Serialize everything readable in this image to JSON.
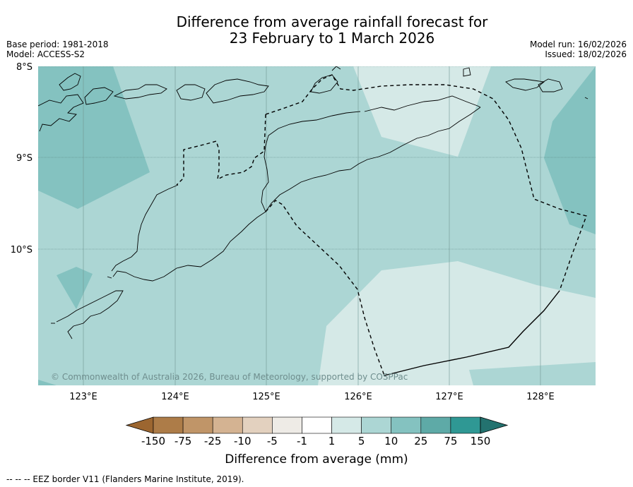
{
  "title_line1": "Difference from average rainfall forecast for",
  "title_line2": "23 February to 1 March 2026",
  "base_period": "Base period: 1981-2018",
  "model": "Model: ACCESS-S2",
  "model_run": "Model run: 16/02/2026",
  "issued": "Issued: 18/02/2026",
  "lat_labels": [
    "8°S",
    "9°S",
    "10°S"
  ],
  "lon_labels": [
    "123°E",
    "124°E",
    "125°E",
    "126°E",
    "127°E",
    "128°E"
  ],
  "credit": "© Commonwealth of Australia 2026, Bureau of Meteorology, supported by COSPPac",
  "colorbar": {
    "ticks": [
      "-150",
      "-75",
      "-25",
      "-10",
      "-5",
      "-1",
      "1",
      "5",
      "10",
      "25",
      "75",
      "150"
    ],
    "colors": [
      "#9c6630",
      "#ad7c48",
      "#c09568",
      "#d4b392",
      "#e3d1bf",
      "#eeebe6",
      "#ffffff",
      "#d5e9e7",
      "#acd6d4",
      "#84c2c0",
      "#5eaaa7",
      "#2f9894",
      "#23726f"
    ],
    "title": "Difference from average (mm)"
  },
  "legend_footer": "--  --  -- EEZ border V11 (Flanders Marine Institute, 2019).",
  "colors": {
    "band_1_5": "#d5e9e7",
    "band_5_10": "#acd6d4",
    "band_10_25": "#84c2c0"
  }
}
